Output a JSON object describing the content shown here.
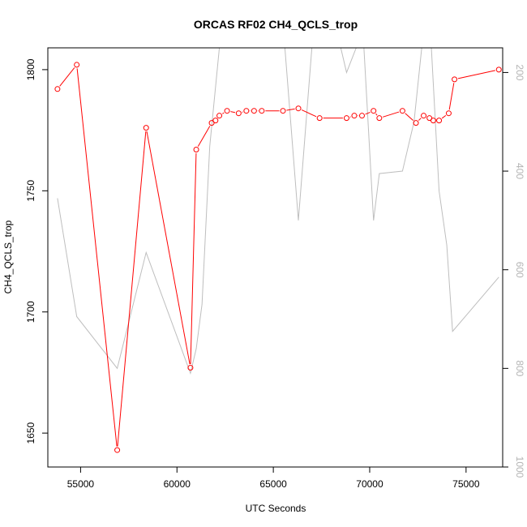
{
  "chart_data": {
    "type": "line",
    "title": "ORCAS RF02 CH4_QCLS_trop",
    "xlabel": "UTC Seconds",
    "ylabel": "CH4_QCLS_trop",
    "xlim": [
      53300,
      76900
    ],
    "ylim": [
      1636,
      1809
    ],
    "y2lim": [
      1000,
      150
    ],
    "y2_reversed": true,
    "x_ticks": [
      55000,
      60000,
      65000,
      70000,
      75000
    ],
    "y_ticks": [
      1650,
      1700,
      1750,
      1800
    ],
    "y2_ticks": [
      200,
      400,
      600,
      800,
      1000
    ],
    "grid": false,
    "series": [
      {
        "axis": "left",
        "color": "#ff0000",
        "marker": "open-circle",
        "points": [
          [
            53800,
            1792
          ],
          [
            54800,
            1802
          ],
          [
            56900,
            1643
          ],
          [
            58400,
            1776
          ],
          [
            60700,
            1677
          ],
          [
            61000,
            1767
          ],
          [
            61800,
            1778
          ],
          [
            62000,
            1779
          ],
          [
            62200,
            1781
          ],
          [
            62600,
            1783
          ],
          [
            63200,
            1782
          ],
          [
            63600,
            1783
          ],
          [
            64000,
            1783
          ],
          [
            64400,
            1783
          ],
          [
            65500,
            1783
          ],
          [
            66300,
            1784
          ],
          [
            67400,
            1780
          ],
          [
            68800,
            1780
          ],
          [
            69200,
            1781
          ],
          [
            69600,
            1781
          ],
          [
            70200,
            1783
          ],
          [
            70500,
            1780
          ],
          [
            71700,
            1783
          ],
          [
            72400,
            1778
          ],
          [
            72800,
            1781
          ],
          [
            73100,
            1780
          ],
          [
            73300,
            1779
          ],
          [
            73600,
            1779
          ],
          [
            74100,
            1782
          ],
          [
            74400,
            1796
          ],
          [
            76700,
            1800
          ]
        ]
      },
      {
        "axis": "right",
        "color": "#bebebe",
        "marker": "none",
        "points": [
          [
            53800,
            455
          ],
          [
            54800,
            695
          ],
          [
            56900,
            800
          ],
          [
            58400,
            565
          ],
          [
            60700,
            810
          ],
          [
            61000,
            760
          ],
          [
            61300,
            670
          ],
          [
            61700,
            350
          ],
          [
            62200,
            150
          ],
          [
            64500,
            150
          ],
          [
            65600,
            150
          ],
          [
            66300,
            500
          ],
          [
            67000,
            150
          ],
          [
            68500,
            150
          ],
          [
            68800,
            200
          ],
          [
            69300,
            150
          ],
          [
            69700,
            150
          ],
          [
            70200,
            500
          ],
          [
            70500,
            405
          ],
          [
            71700,
            400
          ],
          [
            72300,
            300
          ],
          [
            72700,
            150
          ],
          [
            73200,
            150
          ],
          [
            73600,
            440
          ],
          [
            74000,
            550
          ],
          [
            74300,
            725
          ],
          [
            76700,
            615
          ]
        ]
      }
    ]
  }
}
